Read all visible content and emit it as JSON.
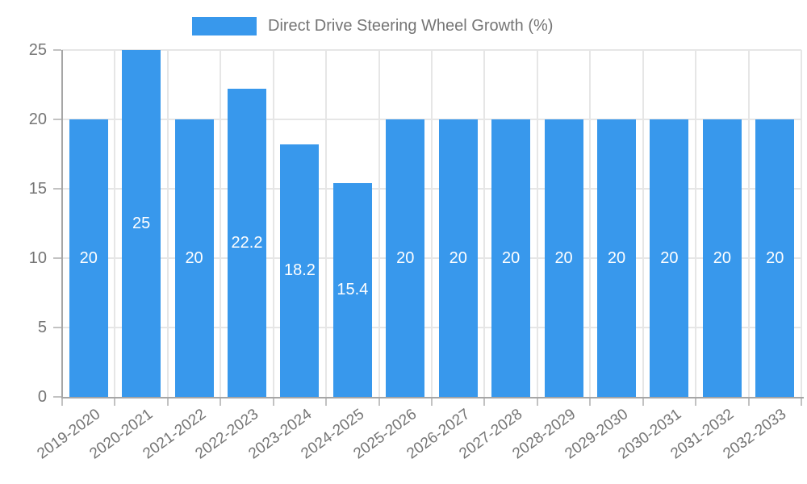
{
  "chart_data": {
    "type": "bar",
    "title": "Direct Drive Steering Wheel Growth (%)",
    "legend_position": "top",
    "categories": [
      "2019-2020",
      "2020-2021",
      "2021-2022",
      "2022-2023",
      "2023-2024",
      "2024-2025",
      "2025-2026",
      "2026-2027",
      "2027-2028",
      "2028-2029",
      "2029-2030",
      "2030-2031",
      "2031-2032",
      "2032-2033"
    ],
    "values": [
      20,
      25,
      20,
      22.2,
      18.2,
      15.4,
      20,
      20,
      20,
      20,
      20,
      20,
      20,
      20
    ],
    "value_labels": [
      "20",
      "25",
      "20",
      "22.2",
      "18.2",
      "15.4",
      "20",
      "20",
      "20",
      "20",
      "20",
      "20",
      "20",
      "20"
    ],
    "xlabel": "",
    "ylabel": "",
    "ylim": [
      0,
      25
    ],
    "yticks": [
      0,
      5,
      10,
      15,
      20,
      25
    ],
    "grid": true,
    "colors": {
      "bar": "#3898EC",
      "value_label": "#FFFFFF",
      "axis_text": "#757575",
      "grid_line": "#E6E6E6",
      "axis_line": "#A6A6A6",
      "tick_mark": "#C2C2C2"
    }
  }
}
